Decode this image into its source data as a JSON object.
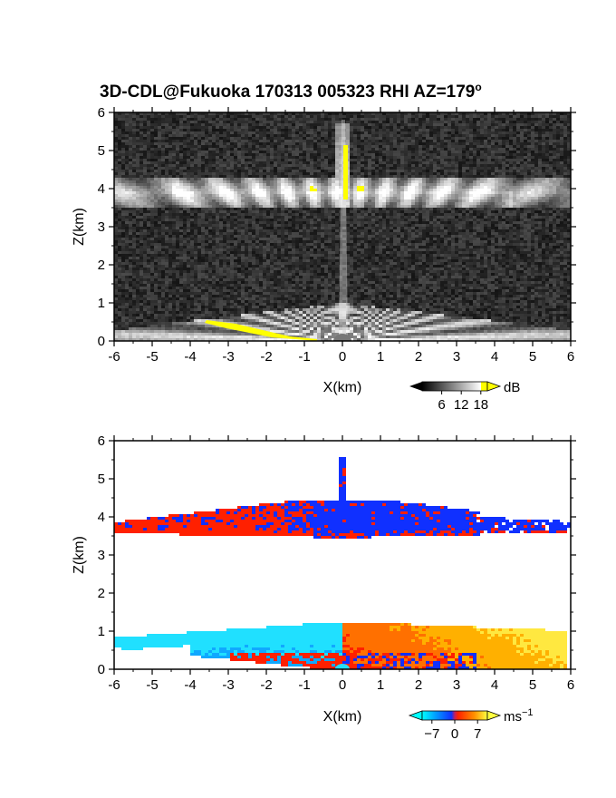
{
  "title": "3D-CDL@Fukuoka 170313 005323 RHI AZ=179",
  "title_sup": "o",
  "chart_data": [
    {
      "type": "heatmap",
      "quantity": "backscatter intensity",
      "xlabel": "X(km)",
      "ylabel": "Z(km)",
      "xlim": [
        -6,
        6
      ],
      "ylim": [
        0,
        6
      ],
      "xticks": [
        -6,
        -5,
        -4,
        -3,
        -2,
        -1,
        0,
        1,
        2,
        3,
        4,
        5,
        6
      ],
      "yticks": [
        0,
        1,
        2,
        3,
        4,
        5,
        6
      ],
      "colorbar": {
        "unit": "dB",
        "ticks": [
          6,
          12,
          18
        ],
        "range": [
          0,
          20
        ],
        "colormap": "grayscale, yellow above max"
      },
      "features": {
        "upper_layer_km": [
          3.5,
          4.3
        ],
        "lower_layer_top_km": 1.0,
        "saturated_color": "#ffff00"
      }
    },
    {
      "type": "heatmap",
      "quantity": "radial (Doppler) velocity",
      "xlabel": "X(km)",
      "ylabel": "Z(km)",
      "xlim": [
        -6,
        6
      ],
      "ylim": [
        0,
        6
      ],
      "xticks": [
        -6,
        -5,
        -4,
        -3,
        -2,
        -1,
        0,
        1,
        2,
        3,
        4,
        5,
        6
      ],
      "yticks": [
        0,
        1,
        2,
        3,
        4,
        5,
        6
      ],
      "colorbar": {
        "unit": "ms",
        "unit_sup": "−1",
        "tick_labels": [
          "−7",
          "0",
          "7"
        ],
        "ticks": [
          -7,
          0,
          7
        ],
        "range": [
          -10,
          10
        ],
        "colormap": "cyan-blue-red-yellow"
      },
      "features": {
        "upper_layer_km": [
          3.3,
          4.4
        ],
        "lower_layer_top_km": 1.25
      }
    }
  ]
}
